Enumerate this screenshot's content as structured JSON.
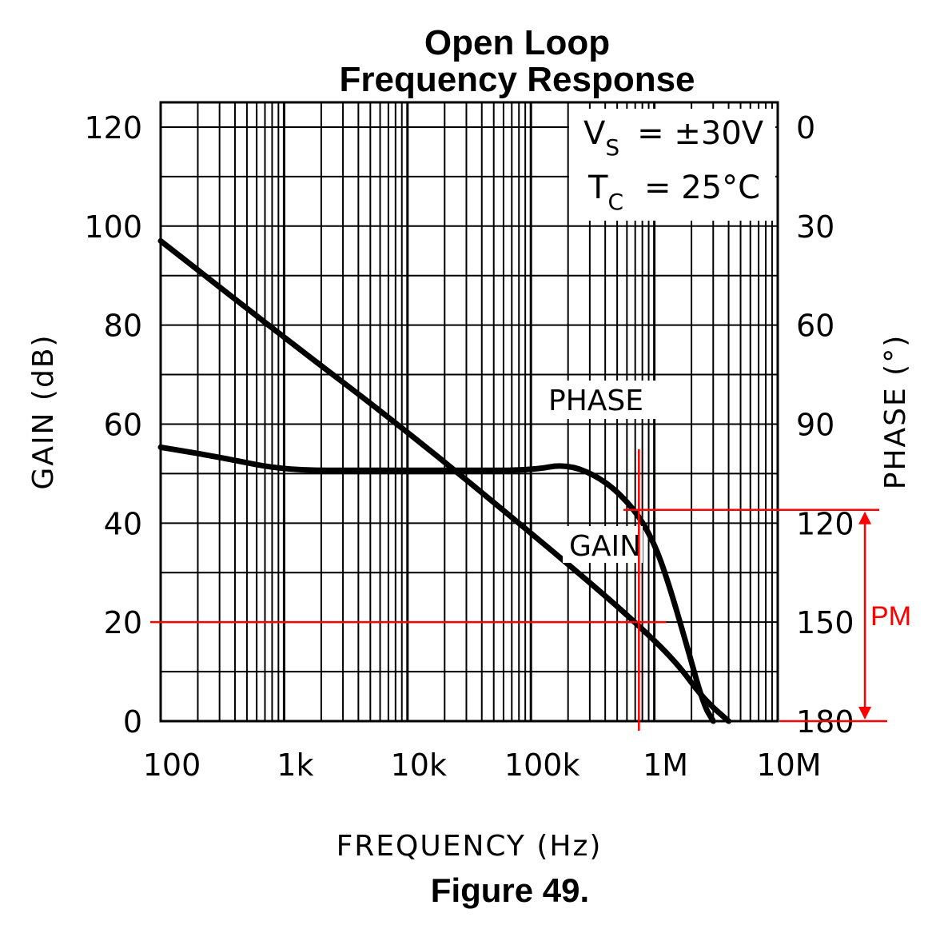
{
  "chart_data": {
    "type": "line",
    "title": [
      "Open Loop",
      "Frequency Response"
    ],
    "figure_caption": "Figure 49.",
    "xlabel": "FREQUENCY (Hz)",
    "ylabel_left": "GAIN (dB)",
    "ylabel_right": "PHASE (°)",
    "x_scale": "log",
    "xlim": [
      100,
      10000000
    ],
    "ylim_left": [
      0,
      125
    ],
    "ylim_right": [
      0,
      180
    ],
    "x_ticks": [
      {
        "value": 100,
        "label": "100"
      },
      {
        "value": 1000,
        "label": "1k"
      },
      {
        "value": 10000,
        "label": "10k"
      },
      {
        "value": 100000,
        "label": "100k"
      },
      {
        "value": 1000000,
        "label": "1M"
      },
      {
        "value": 10000000,
        "label": "10M"
      }
    ],
    "y_ticks_left": [
      0,
      20,
      40,
      60,
      80,
      100,
      120
    ],
    "y_ticks_right": [
      {
        "phase": 0,
        "label": "0"
      },
      {
        "phase": 30,
        "label": "30"
      },
      {
        "phase": 60,
        "label": "60"
      },
      {
        "phase": 90,
        "label": "90"
      },
      {
        "phase": 120,
        "label": "120"
      },
      {
        "phase": 150,
        "label": "150"
      },
      {
        "phase": 180,
        "label": "180"
      }
    ],
    "grid": true,
    "conditions": {
      "vs": {
        "main": "V",
        "sub": "S",
        "value": "=  ±30V"
      },
      "tc": {
        "main": "T",
        "sub": "C",
        "value": "=  25°C"
      }
    },
    "series": [
      {
        "name": "GAIN",
        "label": "GAIN",
        "axis": "left",
        "x": [
          100,
          1000,
          10000,
          100000,
          300000,
          700000,
          1500000,
          2500000,
          4000000
        ],
        "y": [
          97,
          77.5,
          58.5,
          38,
          28,
          20,
          12,
          4.5,
          0
        ]
      },
      {
        "name": "PHASE",
        "label": "PHASE",
        "axis": "right",
        "x": [
          100,
          300,
          1000,
          5000,
          30000,
          100000,
          200000,
          400000,
          700000,
          1000000,
          1300000,
          1800000,
          2500000,
          3000000
        ],
        "y": [
          97,
          100,
          104,
          104,
          104,
          104,
          102,
          107,
          116,
          126,
          138,
          156,
          175,
          180
        ]
      }
    ],
    "annotations": {
      "pm_label": "PM",
      "crossover_gain_db": 20,
      "crossover_frequency": 750000,
      "phase_at_crossover": 116,
      "phase_reference": 180
    }
  }
}
